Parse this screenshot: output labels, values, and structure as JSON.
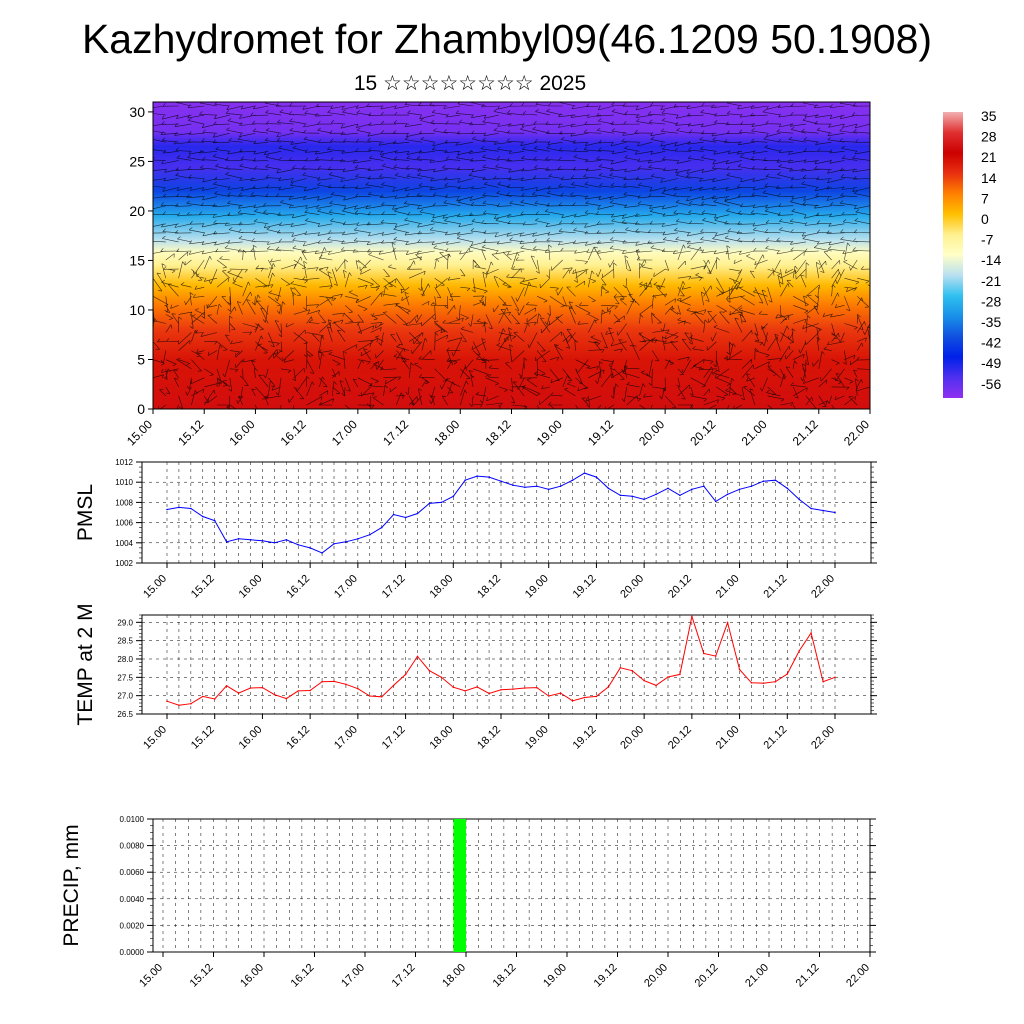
{
  "header": {
    "title": "Kazhydromet for Zhambyl09(46.1209 50.1908)",
    "subtitle": "15 ☆☆☆☆☆☆☆☆ 2025"
  },
  "colors": {
    "pmsl_line": "#0000ff",
    "temp_line": "#ff0000",
    "precip_bar": "#00ff00",
    "grid": "#000000"
  },
  "chart_data": [
    {
      "type": "heatmap",
      "name": "cross-section",
      "x_tick_labels": [
        "15.00",
        "15.12",
        "16.00",
        "16.12",
        "17.00",
        "17.12",
        "18.00",
        "18.12",
        "19.00",
        "19.12",
        "20.00",
        "20.12",
        "21.00",
        "21.12",
        "22.00"
      ],
      "y_ticks": [
        0,
        5,
        10,
        15,
        20,
        25,
        30
      ],
      "ylim": [
        0,
        31
      ],
      "colorbar_labels": [
        35,
        28,
        21,
        14,
        7,
        0,
        -7,
        -14,
        -21,
        -28,
        -35,
        -42,
        -49,
        -56
      ],
      "colorbar_colors": [
        "#f2b0b0",
        "#e03030",
        "#cc0000",
        "#e83010",
        "#ff8000",
        "#ffc000",
        "#fff090",
        "#ffffc8",
        "#b8e0f0",
        "#30c0f0",
        "#1890e8",
        "#1050e0",
        "#0020e8",
        "#5030f0",
        "#9030f0"
      ],
      "color_by_height": [
        {
          "h": 0,
          "v": 26
        },
        {
          "h": 5,
          "v": 21
        },
        {
          "h": 8,
          "v": 16
        },
        {
          "h": 10.5,
          "v": 10
        },
        {
          "h": 12.5,
          "v": 3
        },
        {
          "h": 14.5,
          "v": -5
        },
        {
          "h": 15.8,
          "v": -11
        },
        {
          "h": 17,
          "v": -19
        },
        {
          "h": 19.5,
          "v": -30
        },
        {
          "h": 22,
          "v": -43
        },
        {
          "h": 24.5,
          "v": -55
        },
        {
          "h": 26.5,
          "v": -52
        },
        {
          "h": 28,
          "v": -60
        },
        {
          "h": 31,
          "v": -62
        }
      ]
    },
    {
      "type": "line",
      "ylabel": "PMSL",
      "ylim": [
        1002,
        1012
      ],
      "y_ticks": [
        1002,
        1004,
        1006,
        1008,
        1010,
        1012
      ],
      "x_tick_labels": [
        "15.00",
        "15.12",
        "16.00",
        "16.12",
        "17.00",
        "17.12",
        "18.00",
        "18.12",
        "19.00",
        "19.12",
        "20.00",
        "20.12",
        "21.00",
        "21.12",
        "22.00"
      ],
      "x": [
        0,
        3,
        6,
        9,
        12,
        15,
        18,
        21,
        24,
        27,
        30,
        33,
        36,
        39,
        42,
        45,
        48,
        51,
        54,
        57,
        60,
        63,
        66,
        69,
        72,
        75,
        78,
        81,
        84,
        87,
        90,
        93,
        96,
        99,
        102,
        105,
        108,
        111,
        114,
        117,
        120,
        123,
        126,
        129,
        132,
        135,
        138,
        141,
        144,
        147,
        150,
        153,
        156,
        159,
        162,
        165,
        168
      ],
      "series": [
        {
          "values": [
            1007.3,
            1007.5,
            1007.4,
            1006.6,
            1006.2,
            1004.1,
            1004.4,
            1004.3,
            1004.2,
            1004.0,
            1004.3,
            1003.8,
            1003.5,
            1003.0,
            1003.9,
            1004.1,
            1004.4,
            1004.8,
            1005.5,
            1006.8,
            1006.5,
            1006.9,
            1007.9,
            1008.0,
            1008.6,
            1010.2,
            1010.6,
            1010.5,
            1010.1,
            1009.7,
            1009.5,
            1009.6,
            1009.3,
            1009.6,
            1010.2,
            1010.9,
            1010.5,
            1009.4,
            1008.7,
            1008.6,
            1008.3,
            1008.8,
            1009.4,
            1008.7,
            1009.3,
            1009.6,
            1008.1,
            1008.8,
            1009.3,
            1009.6,
            1010.1,
            1010.2,
            1009.4,
            1008.3,
            1007.4,
            1007.2,
            1007.0
          ]
        }
      ]
    },
    {
      "type": "line",
      "ylabel": "TEMP at 2 M",
      "ylim": [
        26.5,
        29.2
      ],
      "y_ticks": [
        26.5,
        27.0,
        27.5,
        28.0,
        28.5,
        29.0
      ],
      "y_tick_labels": [
        "26.5",
        "27.0",
        "27.5",
        "28.0",
        "28.5",
        "29.0"
      ],
      "x_tick_labels": [
        "15.00",
        "15.12",
        "16.00",
        "16.12",
        "17.00",
        "17.12",
        "18.00",
        "18.12",
        "19.00",
        "19.12",
        "20.00",
        "20.12",
        "21.00",
        "21.12",
        "22.00"
      ],
      "x": [
        0,
        3,
        6,
        9,
        12,
        15,
        18,
        21,
        24,
        27,
        30,
        33,
        36,
        39,
        42,
        45,
        48,
        51,
        54,
        57,
        60,
        63,
        66,
        69,
        72,
        75,
        78,
        81,
        84,
        87,
        90,
        93,
        96,
        99,
        102,
        105,
        108,
        111,
        114,
        117,
        120,
        123,
        126,
        129,
        132,
        135,
        138,
        141,
        144,
        147,
        150,
        153,
        156,
        159,
        162,
        165,
        168
      ],
      "series": [
        {
          "values": [
            26.85,
            26.74,
            26.78,
            26.98,
            26.91,
            27.27,
            27.07,
            27.21,
            27.22,
            27.03,
            26.92,
            27.13,
            27.14,
            27.38,
            27.39,
            27.31,
            27.19,
            26.99,
            26.97,
            27.28,
            27.58,
            28.07,
            27.68,
            27.5,
            27.23,
            27.13,
            27.24,
            27.06,
            27.16,
            27.18,
            27.21,
            27.22,
            26.99,
            27.07,
            26.86,
            26.95,
            26.98,
            27.24,
            27.76,
            27.68,
            27.41,
            27.28,
            27.51,
            27.58,
            29.16,
            28.15,
            28.08,
            28.99,
            27.71,
            27.35,
            27.34,
            27.38,
            27.59,
            28.22,
            28.71,
            27.38,
            27.5
          ]
        }
      ]
    },
    {
      "type": "bar",
      "ylabel": "PRECIP, mm",
      "ylim": [
        0,
        0.01
      ],
      "y_ticks": [
        0,
        0.002,
        0.004,
        0.006,
        0.008,
        0.01
      ],
      "y_tick_labels": [
        "0.0000",
        "0.0020",
        "0.0040",
        "0.0060",
        "0.0080",
        "0.0100"
      ],
      "x_tick_labels": [
        "15.00",
        "15.12",
        "16.00",
        "16.12",
        "17.00",
        "17.12",
        "18.00",
        "18.12",
        "19.00",
        "19.12",
        "20.00",
        "20.12",
        "21.00",
        "21.12",
        "22.00"
      ],
      "bars": [
        {
          "x_start": 69,
          "x_end": 72,
          "value": 0.01
        }
      ]
    }
  ]
}
